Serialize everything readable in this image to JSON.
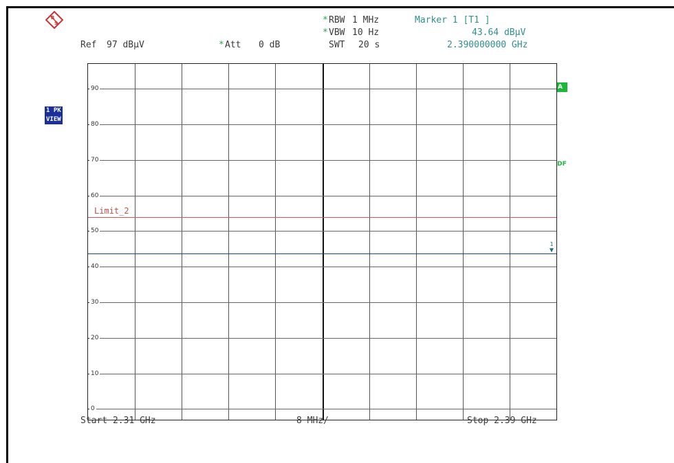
{
  "header": {
    "ref_label": "Ref",
    "ref_value": "97 dBµV",
    "att_label": "Att",
    "att_value": "0 dB",
    "rbw_label": "RBW",
    "rbw_value": "1 MHz",
    "vbw_label": "VBW",
    "vbw_value": "10 Hz",
    "swt_label": "SWT",
    "swt_value": "20 s",
    "changed_star": "*",
    "marker_title": "Marker 1 [T1 ]",
    "marker_level": "43.64 dBµV",
    "marker_freq": "2.390000000 GHz"
  },
  "sidebar": {
    "trace_mode_1": "1 PK",
    "trace_mode_2": "VIEW",
    "badge_a": "A",
    "badge_tdf": "TDF"
  },
  "limit": {
    "label": "Limit_2",
    "value": 54
  },
  "marker": {
    "number": "1",
    "level": 43.64
  },
  "footer": {
    "start": "Start 2.31 GHz",
    "span_div": "8 MHz/",
    "stop": "Stop 2.39 GHz"
  },
  "colors": {
    "trace": "#1f3e9a",
    "limit": "#d9534f",
    "teal_text": "#2f8f8f",
    "badge_green": "#1db83a",
    "side_blue": "#1a2f9c"
  },
  "chart_data": {
    "type": "line",
    "x_range": [
      2.31,
      2.39
    ],
    "x_unit": "GHz",
    "ylim": [
      -3,
      97
    ],
    "y_unit": "dBµV",
    "y_ticks": [
      "90",
      "80",
      "70",
      "60",
      "50",
      "40",
      "30",
      "20",
      "10",
      "0"
    ],
    "x_divisions": 10,
    "grid": true,
    "series": [
      {
        "x": [
          2.31,
          2.39
        ],
        "values": [
          43.64,
          43.64
        ]
      }
    ],
    "limit_line": 54
  }
}
